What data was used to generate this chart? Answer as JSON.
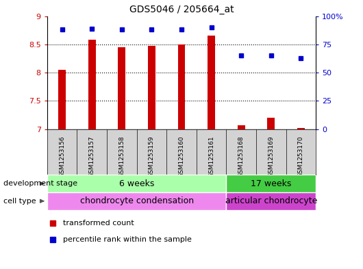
{
  "title": "GDS5046 / 205664_at",
  "samples": [
    "GSM1253156",
    "GSM1253157",
    "GSM1253158",
    "GSM1253159",
    "GSM1253160",
    "GSM1253161",
    "GSM1253168",
    "GSM1253169",
    "GSM1253170"
  ],
  "transformed_counts": [
    8.05,
    8.58,
    8.45,
    8.47,
    8.5,
    8.65,
    7.07,
    7.2,
    7.02
  ],
  "percentile_ranks": [
    88,
    89,
    88,
    88,
    88,
    90,
    65,
    65,
    63
  ],
  "bar_color": "#cc0000",
  "dot_color": "#0000cc",
  "ylim_left": [
    7,
    9
  ],
  "ylim_right": [
    0,
    100
  ],
  "yticks_left": [
    7,
    7.5,
    8,
    8.5,
    9
  ],
  "yticks_right": [
    0,
    25,
    50,
    75,
    100
  ],
  "yticklabels_right": [
    "0",
    "25",
    "50",
    "75",
    "100%"
  ],
  "background_color": "#ffffff",
  "plot_bg_color": "#ffffff",
  "tick_label_bg": "#d3d3d3",
  "development_stages": [
    {
      "label": "6 weeks",
      "start": 0,
      "end": 6,
      "color": "#aaffaa"
    },
    {
      "label": "17 weeks",
      "start": 6,
      "end": 9,
      "color": "#44cc44"
    }
  ],
  "cell_types": [
    {
      "label": "chondrocyte condensation",
      "start": 0,
      "end": 6,
      "color": "#ee88ee"
    },
    {
      "label": "articular chondrocyte",
      "start": 6,
      "end": 9,
      "color": "#cc44cc"
    }
  ],
  "dev_stage_label": "development stage",
  "cell_type_label": "cell type",
  "legend_items": [
    {
      "label": "transformed count",
      "color": "#cc0000"
    },
    {
      "label": "percentile rank within the sample",
      "color": "#0000cc"
    }
  ],
  "left_color": "#cc0000",
  "right_color": "#0000cc",
  "base_value": 7,
  "bar_width": 0.25,
  "marker_size": 5
}
